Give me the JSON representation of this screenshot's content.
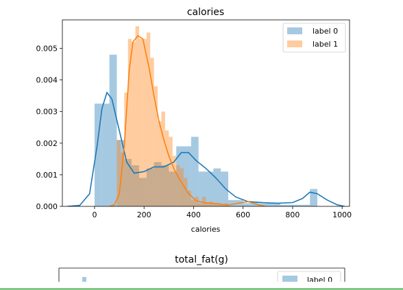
{
  "chart_data": [
    {
      "type": "histogram",
      "title": "calories",
      "xlabel": "calories",
      "ylabel": "",
      "xlim": [
        -130,
        1030
      ],
      "ylim": [
        0,
        0.0059
      ],
      "xticks": [
        0,
        200,
        400,
        600,
        800,
        1000
      ],
      "yticks": [
        0.0,
        0.001,
        0.002,
        0.003,
        0.004,
        0.005
      ],
      "ytick_labels": [
        "0.000",
        "0.001",
        "0.002",
        "0.003",
        "0.004",
        "0.005"
      ],
      "xtick_labels": [
        "0",
        "200",
        "400",
        "600",
        "800",
        "1000"
      ],
      "legend_position": "top-right",
      "series": [
        {
          "name": "label 0",
          "color": "#1f77b4",
          "bar_alpha": 0.4,
          "bins": [
            [
              0,
              30,
              0.00325
            ],
            [
              30,
              60,
              0.00325
            ],
            [
              60,
              90,
              0.0048
            ],
            [
              90,
              120,
              0.0021
            ],
            [
              120,
              150,
              0.0015
            ],
            [
              150,
              180,
              0.0013
            ],
            [
              180,
              210,
              0.0009
            ],
            [
              210,
              240,
              0.0012
            ],
            [
              240,
              270,
              0.0014
            ],
            [
              270,
              300,
              0.0013
            ],
            [
              300,
              330,
              0.0011
            ],
            [
              330,
              360,
              0.0019
            ],
            [
              360,
              390,
              0.0019
            ],
            [
              390,
              420,
              0.0022
            ],
            [
              420,
              450,
              0.0011
            ],
            [
              450,
              480,
              0.0011
            ],
            [
              480,
              510,
              0.0012
            ],
            [
              510,
              540,
              0.0011
            ],
            [
              540,
              570,
              0.0002
            ],
            [
              570,
              600,
              0.0002
            ],
            [
              600,
              630,
              0.0001
            ],
            [
              630,
              660,
              0.00015
            ],
            [
              660,
              690,
              0.0001
            ],
            [
              690,
              720,
              0.0001
            ],
            [
              720,
              750,
              0.0001
            ],
            [
              750,
              780,
              5e-05
            ],
            [
              780,
              810,
              5e-05
            ],
            [
              810,
              840,
              5e-05
            ],
            [
              840,
              870,
              5e-05
            ],
            [
              870,
              900,
              0.00055
            ]
          ],
          "kde": [
            [
              -110,
              0
            ],
            [
              -60,
              3e-05
            ],
            [
              -20,
              0.0004
            ],
            [
              10,
              0.0019
            ],
            [
              30,
              0.0031
            ],
            [
              50,
              0.0036
            ],
            [
              70,
              0.0034
            ],
            [
              100,
              0.0024
            ],
            [
              130,
              0.0014
            ],
            [
              160,
              0.00105
            ],
            [
              200,
              0.0011
            ],
            [
              240,
              0.00125
            ],
            [
              280,
              0.00125
            ],
            [
              320,
              0.0014
            ],
            [
              350,
              0.0017
            ],
            [
              380,
              0.0017
            ],
            [
              410,
              0.00145
            ],
            [
              450,
              0.0012
            ],
            [
              490,
              0.0009
            ],
            [
              530,
              0.00055
            ],
            [
              570,
              0.0003
            ],
            [
              620,
              0.00015
            ],
            [
              680,
              0.00012
            ],
            [
              740,
              0.0001
            ],
            [
              800,
              0.00012
            ],
            [
              840,
              0.00025
            ],
            [
              870,
              0.00045
            ],
            [
              900,
              0.0004
            ],
            [
              940,
              0.0002
            ],
            [
              980,
              5e-05
            ],
            [
              1010,
              0
            ]
          ]
        },
        {
          "name": "label 1",
          "color": "#ff7f0e",
          "bar_alpha": 0.4,
          "bins": [
            [
              90,
              105,
              0.0021
            ],
            [
              105,
              120,
              0.0017
            ],
            [
              120,
              135,
              0.0036
            ],
            [
              135,
              150,
              0.0053
            ],
            [
              150,
              165,
              0.0052
            ],
            [
              165,
              180,
              0.0057
            ],
            [
              180,
              195,
              0.0053
            ],
            [
              195,
              210,
              0.0053
            ],
            [
              210,
              225,
              0.0055
            ],
            [
              225,
              240,
              0.0047
            ],
            [
              240,
              255,
              0.0038
            ],
            [
              255,
              270,
              0.0027
            ],
            [
              270,
              285,
              0.003
            ],
            [
              285,
              300,
              0.0024
            ],
            [
              300,
              315,
              0.0022
            ],
            [
              315,
              330,
              0.0016
            ],
            [
              330,
              345,
              0.0013
            ],
            [
              345,
              360,
              0.0012
            ],
            [
              360,
              375,
              0.0009
            ],
            [
              375,
              390,
              0.0005
            ],
            [
              390,
              405,
              0.0002
            ],
            [
              405,
              420,
              0.0003
            ],
            [
              420,
              435,
              0.0001
            ],
            [
              435,
              450,
              0.0003
            ],
            [
              450,
              465,
              0.0001
            ],
            [
              465,
              480,
              0.00015
            ],
            [
              480,
              495,
              0.0001
            ],
            [
              495,
              510,
              0.0001
            ],
            [
              510,
              525,
              5e-05
            ],
            [
              525,
              540,
              0.0001
            ]
          ],
          "kde": [
            [
              60,
              0
            ],
            [
              80,
              5e-05
            ],
            [
              100,
              0.0004
            ],
            [
              120,
              0.0019
            ],
            [
              140,
              0.0043
            ],
            [
              155,
              0.0052
            ],
            [
              175,
              0.0054
            ],
            [
              195,
              0.0053
            ],
            [
              220,
              0.0044
            ],
            [
              240,
              0.0035
            ],
            [
              260,
              0.0027
            ],
            [
              280,
              0.0021
            ],
            [
              300,
              0.0016
            ],
            [
              320,
              0.0012
            ],
            [
              340,
              0.0009
            ],
            [
              360,
              0.00065
            ],
            [
              380,
              0.0004
            ],
            [
              410,
              0.00018
            ],
            [
              440,
              0.00012
            ],
            [
              470,
              0.0001
            ],
            [
              500,
              8e-05
            ],
            [
              540,
              4e-05
            ],
            [
              580,
              0.0001
            ],
            [
              620,
              0.00015
            ],
            [
              640,
              0.0001
            ],
            [
              660,
              5e-05
            ],
            [
              690,
              0
            ]
          ]
        }
      ]
    },
    {
      "type": "histogram",
      "title": "total_fat(g)",
      "legend_position": "top-right",
      "series": [
        {
          "name": "label 0",
          "color": "#1f77b4",
          "bar_alpha": 0.4
        }
      ]
    }
  ]
}
